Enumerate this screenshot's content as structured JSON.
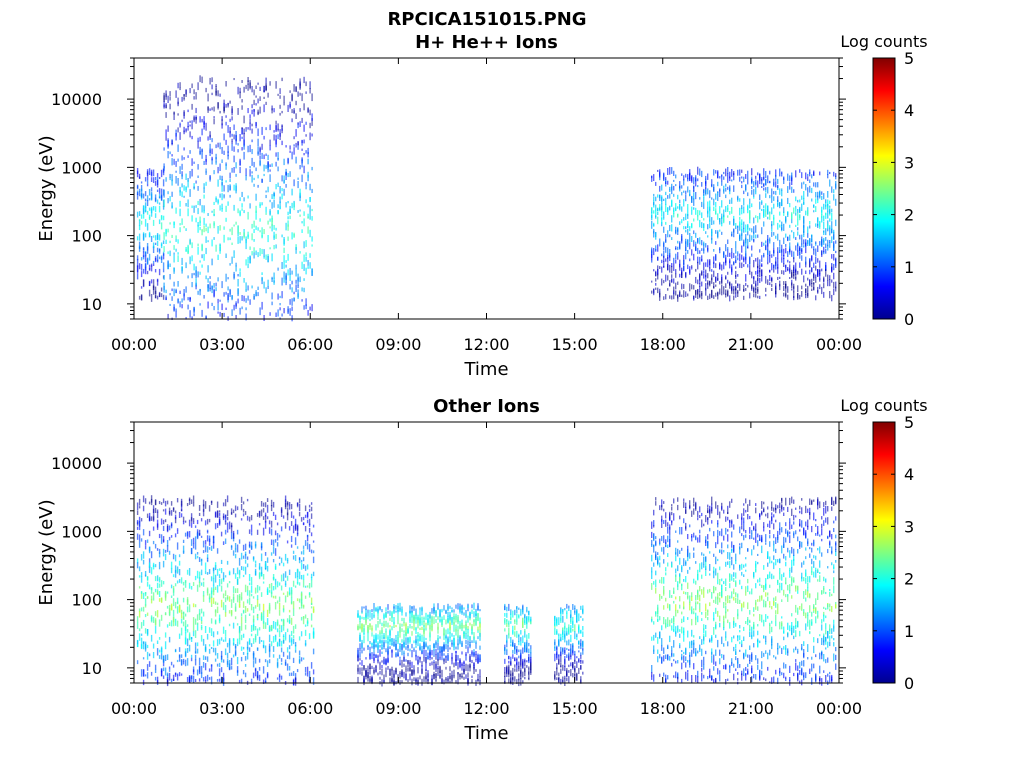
{
  "figure": {
    "title": "RPCICA151015.PNG"
  },
  "colorbar": {
    "label": "Log counts",
    "ticks": [
      "0",
      "1",
      "2",
      "3",
      "4",
      "5"
    ],
    "range": [
      0,
      5
    ],
    "colormap": "jet"
  },
  "chart_data": [
    {
      "type": "heatmap",
      "title": "H+ He++ Ions",
      "xlabel": "Time",
      "ylabel": "Energy (eV)",
      "xticks": [
        "00:00",
        "03:00",
        "06:00",
        "09:00",
        "12:00",
        "15:00",
        "18:00",
        "21:00",
        "00:00"
      ],
      "xlim_hours": [
        0,
        24
      ],
      "yscale": "log",
      "yticks": [
        "10",
        "100",
        "1000",
        "10000"
      ],
      "ylim": [
        6,
        40000
      ],
      "value_label": "Log counts",
      "value_range": [
        0,
        5
      ],
      "blocks": [
        {
          "t_start": 0.1,
          "t_end": 1.0,
          "e_min": 12,
          "e_max": 900,
          "peak": 2.0,
          "core_e": 150
        },
        {
          "t_start": 1.0,
          "t_end": 6.1,
          "e_min": 6,
          "e_max": 20000,
          "peak": 2.1,
          "core_e": 120
        },
        {
          "t_start": 17.6,
          "t_end": 23.9,
          "e_min": 12,
          "e_max": 900,
          "peak": 1.9,
          "core_e": 200
        }
      ]
    },
    {
      "type": "heatmap",
      "title": "Other Ions",
      "xlabel": "Time",
      "ylabel": "Energy (eV)",
      "xticks": [
        "00:00",
        "03:00",
        "06:00",
        "09:00",
        "12:00",
        "15:00",
        "18:00",
        "21:00",
        "00:00"
      ],
      "xlim_hours": [
        0,
        24
      ],
      "yscale": "log",
      "yticks": [
        "10",
        "100",
        "1000",
        "10000"
      ],
      "ylim": [
        6,
        40000
      ],
      "value_label": "Log counts",
      "value_range": [
        0,
        5
      ],
      "blocks": [
        {
          "t_start": 0.1,
          "t_end": 6.1,
          "e_min": 6,
          "e_max": 3000,
          "peak": 2.6,
          "core_e": 80
        },
        {
          "t_start": 7.6,
          "t_end": 11.8,
          "e_min": 6,
          "e_max": 80,
          "peak": 2.5,
          "core_e": 40
        },
        {
          "t_start": 12.6,
          "t_end": 13.5,
          "e_min": 6,
          "e_max": 80,
          "peak": 2.4,
          "core_e": 40
        },
        {
          "t_start": 14.3,
          "t_end": 15.3,
          "e_min": 6,
          "e_max": 80,
          "peak": 2.2,
          "core_e": 40
        },
        {
          "t_start": 17.6,
          "t_end": 23.9,
          "e_min": 6,
          "e_max": 3000,
          "peak": 2.6,
          "core_e": 90
        }
      ]
    }
  ]
}
